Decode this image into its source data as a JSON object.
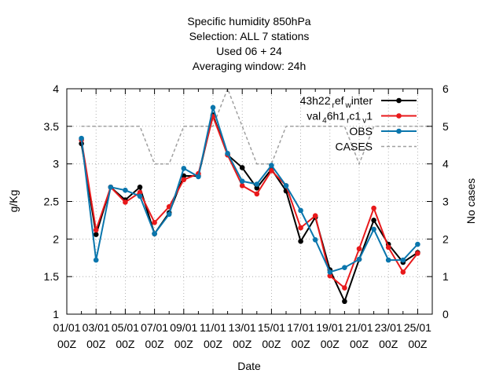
{
  "chart_data": {
    "type": "line",
    "title_lines": [
      "Specific humidity 850hPa",
      "Selection: ALL      7 stations",
      "Used  06  + 24",
      "Averaging window: 24h"
    ],
    "xlabel": "Date",
    "ylabel": "g/Kg",
    "y2label": "No cases",
    "ylim": [
      1,
      4
    ],
    "y2lim": [
      0,
      6
    ],
    "yticks": [
      "1",
      "1.5",
      "2",
      "2.5",
      "3",
      "3.5",
      "4"
    ],
    "y2ticks": [
      "0",
      "1",
      "2",
      "3",
      "4",
      "5",
      "6"
    ],
    "xticks": [
      {
        "date": "01/01",
        "hour": "00Z"
      },
      {
        "date": "03/01",
        "hour": "00Z"
      },
      {
        "date": "05/01",
        "hour": "00Z"
      },
      {
        "date": "07/01",
        "hour": "00Z"
      },
      {
        "date": "09/01",
        "hour": "00Z"
      },
      {
        "date": "11/01",
        "hour": "00Z"
      },
      {
        "date": "13/01",
        "hour": "00Z"
      },
      {
        "date": "15/01",
        "hour": "00Z"
      },
      {
        "date": "17/01",
        "hour": "00Z"
      },
      {
        "date": "19/01",
        "hour": "00Z"
      },
      {
        "date": "21/01",
        "hour": "00Z"
      },
      {
        "date": "23/01",
        "hour": "00Z"
      },
      {
        "date": "25/01",
        "hour": "00Z"
      }
    ],
    "grid": true,
    "legend_position": "top-right",
    "x": [
      "2012-01-02T00Z",
      "2012-01-03T00Z",
      "2012-01-04T00Z",
      "2012-01-05T00Z",
      "2012-01-06T00Z",
      "2012-01-07T00Z",
      "2012-01-08T00Z",
      "2012-01-09T00Z",
      "2012-01-10T00Z",
      "2012-01-11T00Z",
      "2012-01-12T00Z",
      "2012-01-13T00Z",
      "2012-01-14T00Z",
      "2012-01-15T00Z",
      "2012-01-16T00Z",
      "2012-01-17T00Z",
      "2012-01-18T00Z",
      "2012-01-19T00Z",
      "2012-01-20T00Z",
      "2012-01-21T00Z",
      "2012-01-22T00Z",
      "2012-01-23T00Z",
      "2012-01-24T00Z",
      "2012-01-25T00Z",
      "2012-01-26T00Z"
    ],
    "series": [
      {
        "name": "43h22_ref_winter",
        "legend_main": "43h22",
        "legend_parts": [
          {
            "text": "r",
            "sub": true
          },
          {
            "text": "ef",
            "sub": false
          },
          {
            "text": "w",
            "sub": true
          },
          {
            "text": "inter",
            "sub": false
          }
        ],
        "color": "#000000",
        "axis": "y",
        "values": [
          3.27,
          2.06,
          2.69,
          2.52,
          2.69,
          2.07,
          2.35,
          2.84,
          2.84,
          3.65,
          3.12,
          2.95,
          2.68,
          2.93,
          2.64,
          1.97,
          2.29,
          1.59,
          1.17,
          1.73,
          2.25,
          1.93,
          1.69,
          1.82,
          null
        ]
      },
      {
        "name": "val_46h1_rc1_v1",
        "legend_main": "val",
        "legend_parts": [
          {
            "text": "4",
            "sub": true
          },
          {
            "text": "6h1",
            "sub": false
          },
          {
            "text": "r",
            "sub": true
          },
          {
            "text": "c1",
            "sub": false
          },
          {
            "text": "v",
            "sub": true
          },
          {
            "text": "1",
            "sub": false
          }
        ],
        "color": "#e8191b",
        "axis": "y",
        "values": [
          3.32,
          2.12,
          2.69,
          2.49,
          2.62,
          2.22,
          2.43,
          2.79,
          2.87,
          3.63,
          3.12,
          2.71,
          2.6,
          2.91,
          2.71,
          2.15,
          2.31,
          1.51,
          1.35,
          1.87,
          2.41,
          1.89,
          1.56,
          1.81,
          null
        ]
      },
      {
        "name": "OBS",
        "legend_main": "OBS",
        "legend_parts": [],
        "color": "#0a76ad",
        "axis": "y",
        "values": [
          3.34,
          1.72,
          2.69,
          2.65,
          2.57,
          2.07,
          2.33,
          2.94,
          2.83,
          3.75,
          3.14,
          2.77,
          2.73,
          2.98,
          2.71,
          2.38,
          1.99,
          1.56,
          1.62,
          1.73,
          2.13,
          1.72,
          1.72,
          1.93,
          null
        ]
      },
      {
        "name": "CASES",
        "legend_main": "CASES",
        "legend_parts": [],
        "color": "#a0a0a0",
        "axis": "y2",
        "dashed": true,
        "values": [
          5,
          5,
          5,
          5,
          5,
          4,
          4,
          5,
          5,
          5,
          6,
          5,
          4,
          4,
          5,
          5,
          5,
          5,
          5,
          4,
          5,
          5,
          5,
          5,
          5
        ]
      }
    ]
  }
}
